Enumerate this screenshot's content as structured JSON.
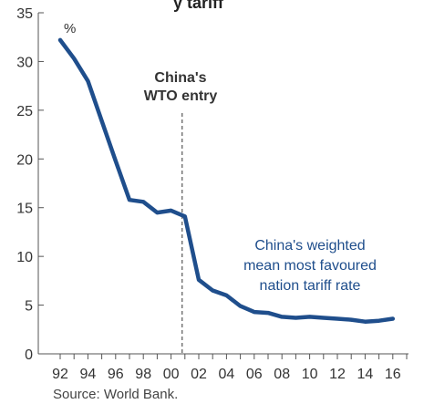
{
  "chart_data": {
    "type": "line",
    "title_fragment": "y tariff",
    "ylabel": "%",
    "xlim": [
      92,
      17
    ],
    "ylim": [
      0,
      35
    ],
    "y_ticks": [
      0,
      5,
      10,
      15,
      20,
      25,
      30,
      35
    ],
    "x_tick_labels": [
      "92",
      "94",
      "96",
      "98",
      "00",
      "02",
      "04",
      "06",
      "08",
      "10",
      "12",
      "14",
      "16"
    ],
    "series": [
      {
        "name": "China's weighted mean most favoured nation tariff rate",
        "label_lines": [
          "China's weighted",
          "mean most favoured",
          "nation tariff rate"
        ],
        "color": "#1f4e8c",
        "points": [
          [
            1992,
            32.2
          ],
          [
            1993,
            30.3
          ],
          [
            1994,
            28.0
          ],
          [
            1995,
            23.9
          ],
          [
            1996,
            19.8
          ],
          [
            1997,
            15.8
          ],
          [
            1998,
            15.6
          ],
          [
            1999,
            14.5
          ],
          [
            2000,
            14.7
          ],
          [
            2001,
            14.1
          ],
          [
            2002,
            7.6
          ],
          [
            2003,
            6.5
          ],
          [
            2004,
            6.0
          ],
          [
            2005,
            4.9
          ],
          [
            2006,
            4.3
          ],
          [
            2007,
            4.2
          ],
          [
            2008,
            3.8
          ],
          [
            2009,
            3.7
          ],
          [
            2010,
            3.8
          ],
          [
            2011,
            3.7
          ],
          [
            2012,
            3.6
          ],
          [
            2013,
            3.5
          ],
          [
            2014,
            3.3
          ],
          [
            2015,
            3.4
          ],
          [
            2016,
            3.6
          ]
        ]
      }
    ],
    "annotation": {
      "lines": [
        "China's",
        "WTO entry"
      ],
      "x": 2000.8
    },
    "source": "Source: World Bank.",
    "grid": false
  }
}
